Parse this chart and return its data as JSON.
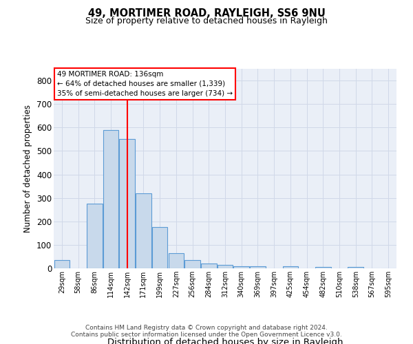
{
  "title1": "49, MORTIMER ROAD, RAYLEIGH, SS6 9NU",
  "title2": "Size of property relative to detached houses in Rayleigh",
  "xlabel": "Distribution of detached houses by size in Rayleigh",
  "ylabel": "Number of detached properties",
  "footer1": "Contains HM Land Registry data © Crown copyright and database right 2024.",
  "footer2": "Contains public sector information licensed under the Open Government Licence v3.0.",
  "bins": [
    "29sqm",
    "58sqm",
    "86sqm",
    "114sqm",
    "142sqm",
    "171sqm",
    "199sqm",
    "227sqm",
    "256sqm",
    "284sqm",
    "312sqm",
    "340sqm",
    "369sqm",
    "397sqm",
    "425sqm",
    "454sqm",
    "482sqm",
    "510sqm",
    "538sqm",
    "567sqm",
    "595sqm"
  ],
  "values": [
    35,
    0,
    275,
    590,
    550,
    320,
    175,
    65,
    35,
    20,
    15,
    10,
    10,
    0,
    8,
    0,
    5,
    0,
    5,
    0,
    0
  ],
  "bar_color": "#c8d9eb",
  "bar_edge_color": "#5b9bd5",
  "red_line_index": 4,
  "annotation_line1": "49 MORTIMER ROAD: 136sqm",
  "annotation_line2": "← 64% of detached houses are smaller (1,339)",
  "annotation_line3": "35% of semi-detached houses are larger (734) →",
  "ylim": [
    0,
    850
  ],
  "yticks": [
    0,
    100,
    200,
    300,
    400,
    500,
    600,
    700,
    800
  ],
  "bg_color": "#ffffff",
  "grid_color": "#d0d8e8",
  "ax_bg_color": "#eaeff7"
}
